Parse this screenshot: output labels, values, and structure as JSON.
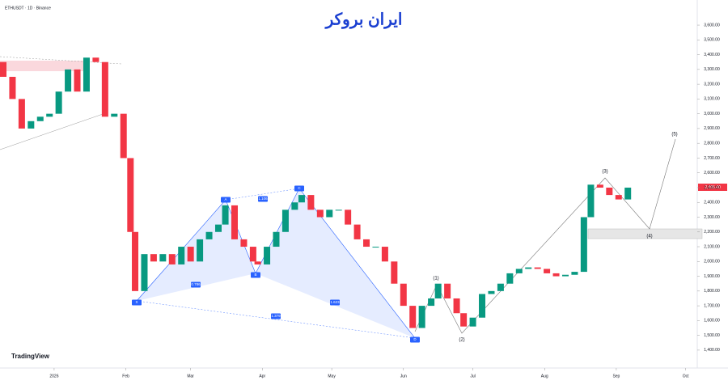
{
  "header": {
    "symbol": "ETHUSDT · 1D · Binance",
    "logo": "ایران بروکر",
    "platform": "TradingView",
    "price_tag": "2,495.40"
  },
  "chart_data": {
    "type": "candlestick",
    "up_color": "#089981",
    "down_color": "#f23645",
    "x": [
      -22,
      -18,
      -14,
      -10,
      -6,
      -2,
      2,
      6,
      10,
      14,
      18,
      22,
      26,
      30,
      33,
      35,
      39,
      43,
      47,
      51,
      55,
      59,
      63,
      67,
      71,
      74,
      78,
      82,
      86,
      88,
      92,
      96,
      100,
      104,
      107,
      111,
      115,
      119,
      123,
      127,
      131,
      135,
      139,
      143,
      147,
      151,
      155,
      159,
      163,
      166,
      170,
      174,
      177,
      181,
      185,
      189,
      193,
      197,
      201,
      205,
      209,
      213,
      217,
      221,
      225,
      229,
      232,
      236,
      240,
      244,
      248
    ],
    "open": [
      3350,
      3250,
      3100,
      2900,
      2950,
      2980,
      3000,
      3150,
      3300,
      3150,
      3380,
      3350,
      2980,
      3000,
      2700,
      2200,
      1800,
      2050,
      2000,
      2050,
      1980,
      2100,
      2000,
      2150,
      2200,
      2250,
      2380,
      2150,
      2100,
      2000,
      1980,
      2100,
      2200,
      2350,
      2400,
      2450,
      2350,
      2300,
      2350,
      2350,
      2250,
      2150,
      2100,
      2100,
      2000,
      1850,
      1700,
      1550,
      1700,
      1750,
      1850,
      1750,
      1650,
      1560,
      1620,
      1780,
      1800,
      1850,
      1920,
      1950,
      1960,
      1950,
      1920,
      1900,
      1910,
      1930,
      2300,
      2520,
      2500,
      2450,
      2420
    ],
    "close": [
      3250,
      3100,
      2900,
      2950,
      2980,
      3000,
      3150,
      3300,
      3150,
      3380,
      3350,
      2980,
      3000,
      2700,
      2200,
      1800,
      2050,
      2000,
      2050,
      1980,
      2100,
      2000,
      2150,
      2200,
      2250,
      2380,
      2150,
      2100,
      2000,
      1980,
      2100,
      2200,
      2350,
      2400,
      2450,
      2350,
      2300,
      2350,
      2350,
      2250,
      2150,
      2100,
      2100,
      2000,
      1850,
      1700,
      1550,
      1700,
      1750,
      1850,
      1750,
      1650,
      1560,
      1620,
      1780,
      1800,
      1850,
      1920,
      1950,
      1960,
      1950,
      1920,
      1900,
      1910,
      1930,
      2300,
      2520,
      2500,
      2450,
      2420,
      2500
    ],
    "xlim": [
      -23.4,
      278
    ],
    "xticks": [
      {
        "value": 0,
        "label": "2026"
      },
      {
        "value": 31,
        "label": "Feb"
      },
      {
        "value": 59,
        "label": "Mar"
      },
      {
        "value": 90,
        "label": "Apr"
      },
      {
        "value": 120,
        "label": "May"
      },
      {
        "value": 151,
        "label": "Jun"
      },
      {
        "value": 181,
        "label": "Jul"
      },
      {
        "value": 212,
        "label": "Aug"
      },
      {
        "value": 243,
        "label": "Sep"
      },
      {
        "value": 273,
        "label": "Oct"
      }
    ],
    "ylim": [
      1279,
      3770
    ],
    "yticks": [
      {
        "value": 3600,
        "label": "3,600.00"
      },
      {
        "value": 3500,
        "label": "3,500.00"
      },
      {
        "value": 3400,
        "label": "3,400.00"
      },
      {
        "value": 3300,
        "label": "3,300.00"
      },
      {
        "value": 3200,
        "label": "3,200.00"
      },
      {
        "value": 3100,
        "label": "3,100.00"
      },
      {
        "value": 3000,
        "label": "3,000.00"
      },
      {
        "value": 2900,
        "label": "2,900.00"
      },
      {
        "value": 2800,
        "label": "2,800.00"
      },
      {
        "value": 2700,
        "label": "2,700.00"
      },
      {
        "value": 2600,
        "label": "2,600.00"
      },
      {
        "value": 2500,
        "label": "2,500.00"
      },
      {
        "value": 2400,
        "label": "2,400.00"
      },
      {
        "value": 2300,
        "label": "2,300.00"
      },
      {
        "value": 2200,
        "label": "2,200.00"
      },
      {
        "value": 2100,
        "label": "2,100.00"
      },
      {
        "value": 2000,
        "label": "2,000.00"
      },
      {
        "value": 1900,
        "label": "1,900.00"
      },
      {
        "value": 1800,
        "label": "1,800.00"
      },
      {
        "value": 1700,
        "label": "1,700.00"
      },
      {
        "value": 1600,
        "label": "1,600.00"
      },
      {
        "value": 1500,
        "label": "1,500.00"
      },
      {
        "value": 1400,
        "label": "1,400.00"
      }
    ],
    "annotations": [
      "X",
      "A",
      "B",
      "C",
      "D",
      "0.786",
      "1.106",
      "1.623",
      "1.379",
      "(1)",
      "(2)",
      "(3)",
      "(4)",
      "(5)"
    ]
  }
}
